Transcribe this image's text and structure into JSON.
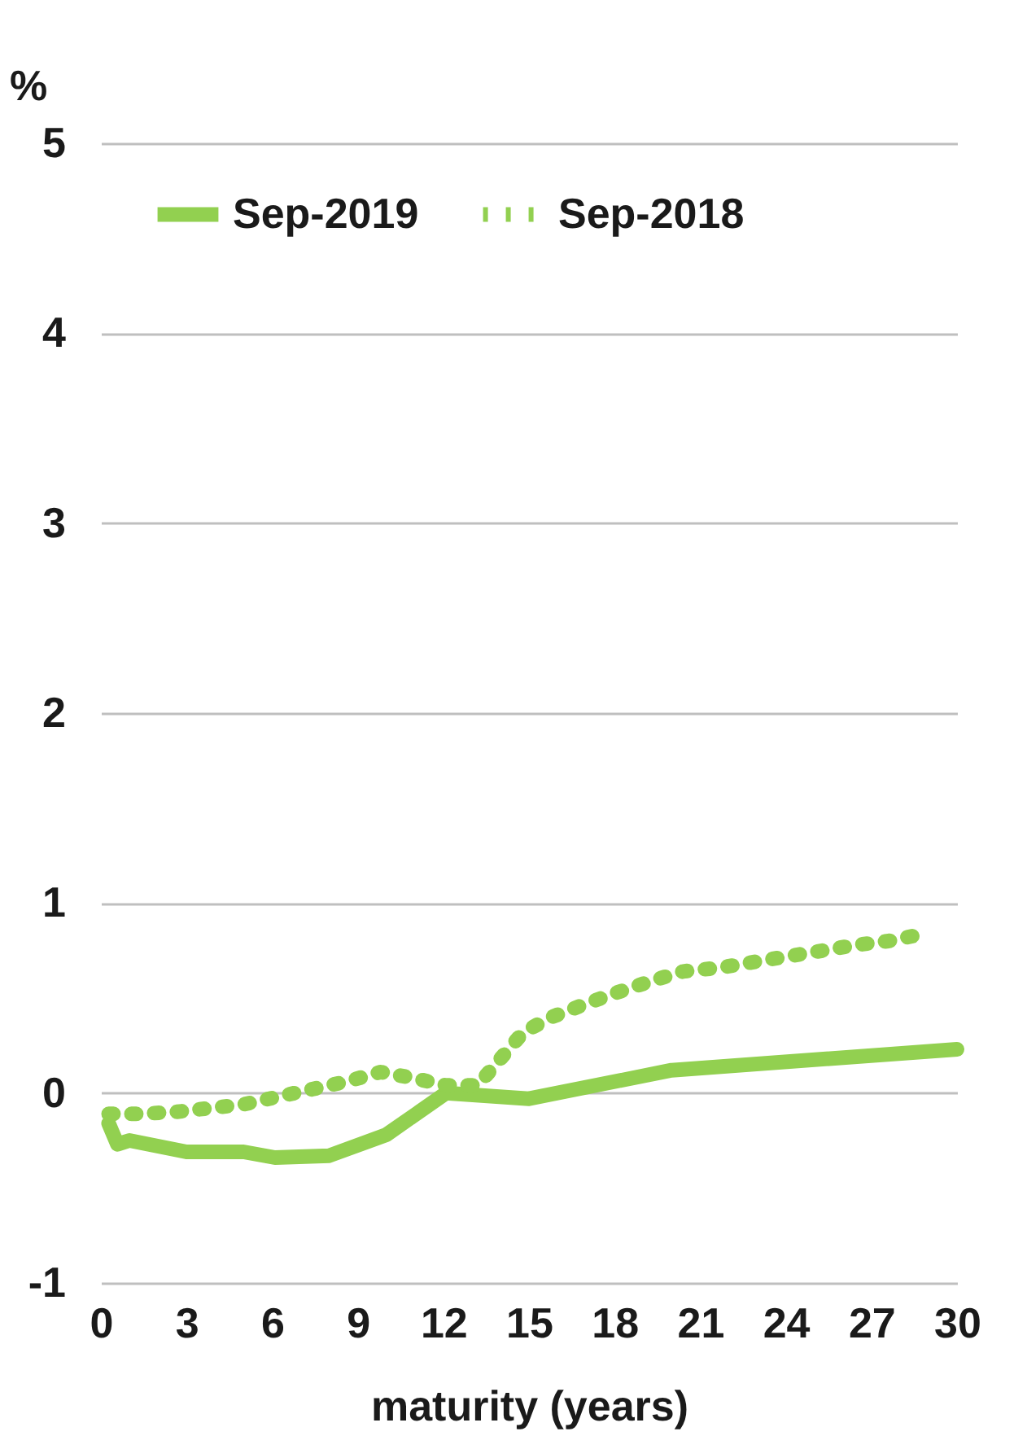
{
  "chart_data": {
    "type": "line",
    "xlabel": "maturity (years)",
    "ylabel": "%",
    "xlim": [
      0,
      30
    ],
    "xticks": [
      0,
      3,
      6,
      9,
      12,
      15,
      18,
      21,
      24,
      27,
      30
    ],
    "ylim": [
      -1,
      5
    ],
    "yticks": [
      -1,
      0,
      1,
      2,
      3,
      4,
      5
    ],
    "grid": "y",
    "legend": "top",
    "series": [
      {
        "name": "Sep-2019",
        "color": "#92d050",
        "line_style": "solid",
        "x": [
          0.27,
          0.58,
          1.0,
          3.0,
          5.0,
          6.1,
          8.0,
          10.0,
          12.1,
          15.0,
          20.0,
          30.0
        ],
        "values": [
          -0.16,
          -0.27,
          -0.25,
          -0.31,
          -0.31,
          -0.34,
          -0.33,
          -0.22,
          0.0,
          -0.03,
          0.12,
          0.23
        ]
      },
      {
        "name": "Sep-2018",
        "color": "#92d050",
        "line_style": "dotted",
        "x": [
          0.27,
          1.35,
          2.6,
          3.8,
          5.0,
          6.2,
          7.4,
          8.6,
          9.8,
          10.9,
          12.1,
          13.2,
          14.0,
          14.8,
          15.8,
          17.0,
          18.1,
          19.3,
          20.4,
          21.7,
          22.9,
          24.1,
          25.3,
          26.5,
          27.6,
          28.9
        ],
        "values": [
          -0.11,
          -0.11,
          -0.1,
          -0.08,
          -0.06,
          -0.02,
          0.02,
          0.06,
          0.11,
          0.08,
          0.04,
          0.04,
          0.18,
          0.32,
          0.4,
          0.47,
          0.53,
          0.59,
          0.64,
          0.66,
          0.69,
          0.72,
          0.75,
          0.78,
          0.8,
          0.84
        ]
      }
    ]
  }
}
